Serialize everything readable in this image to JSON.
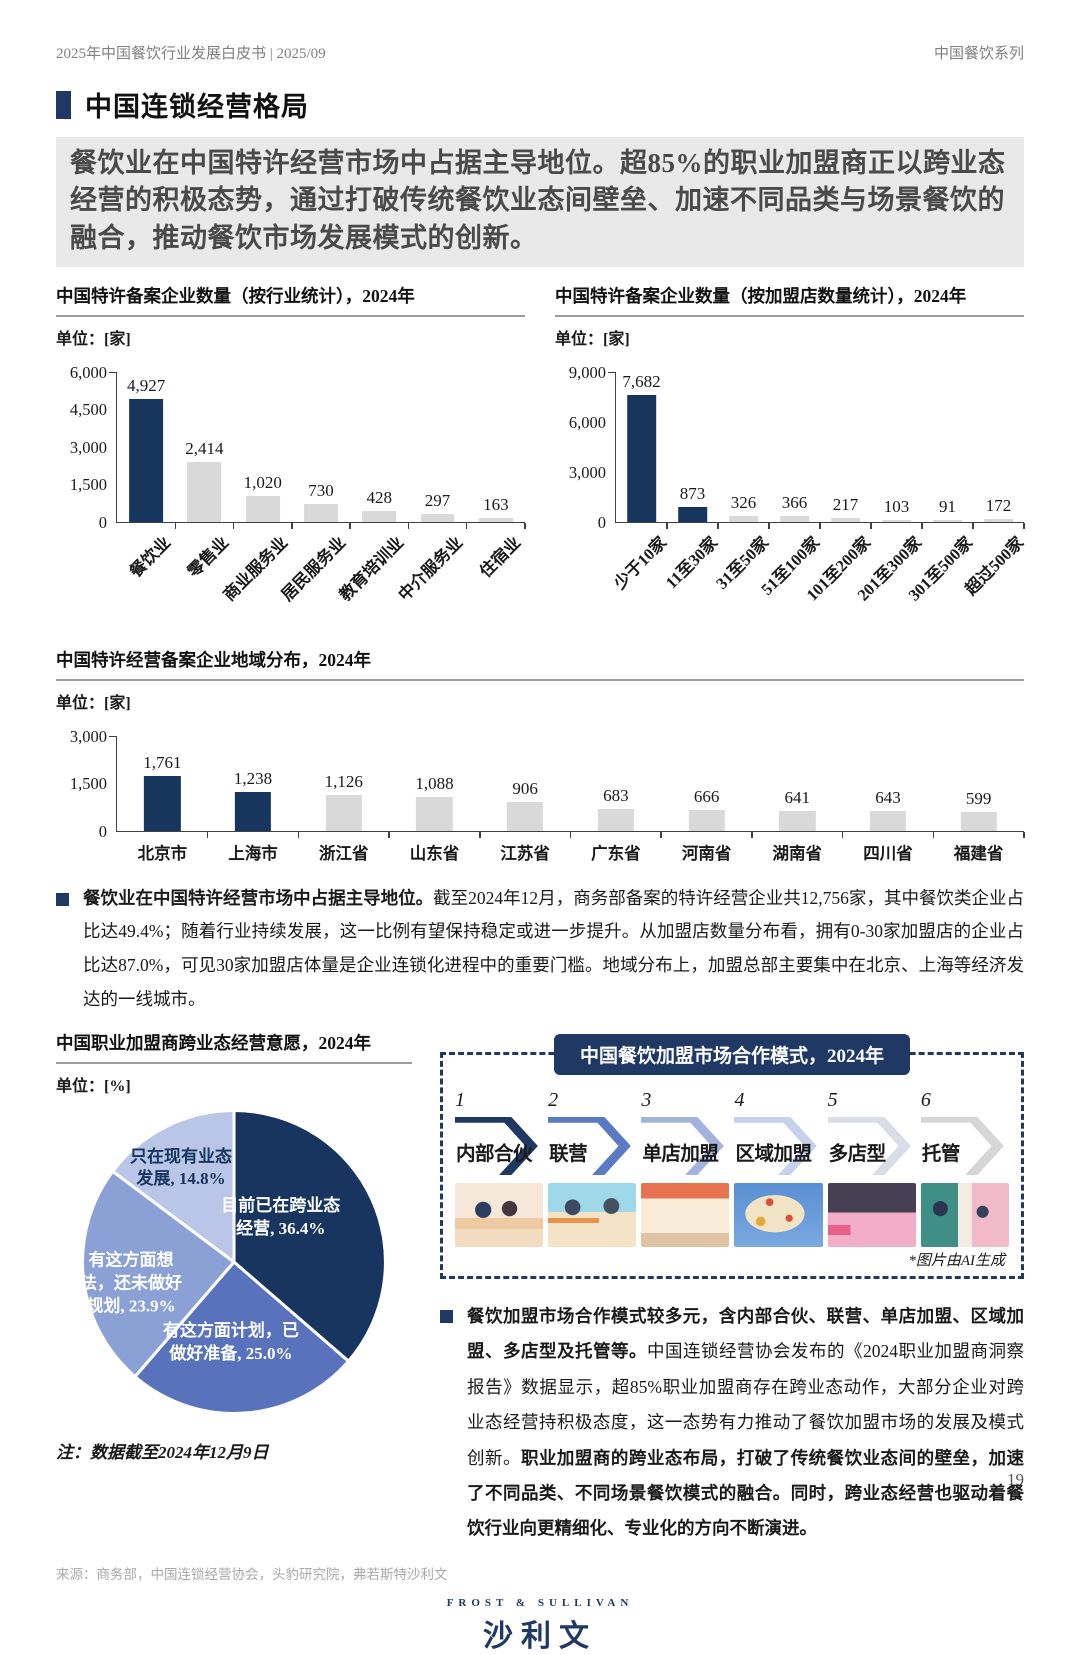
{
  "colors": {
    "accent_navy": "#17365d",
    "bar_gray": "#d9d9d9",
    "deep_navy": "#1f3864"
  },
  "header": {
    "doc_title": "2025年中国餐饮行业发展白皮书 | 2025/09",
    "series": "中国餐饮系列"
  },
  "section": {
    "title": "中国连锁经营格局",
    "highlight": "餐饮业在中国特许经营市场中占据主导地位。超85%的职业加盟商正以跨业态经营的积极态势，通过打破传统餐饮业态间壁垒、加速不同品类与场景餐饮的融合，推动餐饮市场发展模式的创新。"
  },
  "chart_data": [
    {
      "type": "bar",
      "title": "中国特许备案企业数量（按行业统计），2024年",
      "unit": "单位：[家]",
      "categories": [
        "餐饮业",
        "零售业",
        "商业服务业",
        "居民服务业",
        "教育培训业",
        "中介服务业",
        "住宿业"
      ],
      "values": [
        4927,
        2414,
        1020,
        730,
        428,
        297,
        163
      ],
      "labels": [
        "4,927",
        "2,414",
        "1,020",
        "730",
        "428",
        "297",
        "163"
      ],
      "ymax": 6000,
      "yticks": [
        "0",
        "1,500",
        "3,000",
        "4,500",
        "6,000"
      ],
      "emphasized": [
        0
      ]
    },
    {
      "type": "bar",
      "title": "中国特许备案企业数量（按加盟店数量统计），2024年",
      "unit": "单位：[家]",
      "categories": [
        "少于10家",
        "11至30家",
        "31至50家",
        "51至100家",
        "101至200家",
        "201至300家",
        "301至500家",
        "超过500家"
      ],
      "values": [
        7682,
        873,
        326,
        366,
        217,
        103,
        91,
        172
      ],
      "labels": [
        "7,682",
        "873",
        "326",
        "366",
        "217",
        "103",
        "91",
        "172"
      ],
      "ymax": 9000,
      "yticks": [
        "0",
        "3,000",
        "6,000",
        "9,000"
      ],
      "emphasized": [
        0,
        1
      ]
    },
    {
      "type": "bar",
      "title": "中国特许经营备案企业地域分布，2024年",
      "unit": "单位：[家]",
      "categories": [
        "北京市",
        "上海市",
        "浙江省",
        "山东省",
        "江苏省",
        "广东省",
        "河南省",
        "湖南省",
        "四川省",
        "福建省"
      ],
      "values": [
        1761,
        1238,
        1126,
        1088,
        906,
        683,
        666,
        641,
        643,
        599
      ],
      "labels": [
        "1,761",
        "1,238",
        "1,126",
        "1,088",
        "906",
        "683",
        "666",
        "641",
        "643",
        "599"
      ],
      "ymax": 3000,
      "yticks": [
        "0",
        "1,500",
        "3,000"
      ],
      "emphasized": [
        0,
        1
      ]
    },
    {
      "type": "pie",
      "title": "中国职业加盟商跨业态经营意愿，2024年",
      "unit": "单位：[%]",
      "slices": [
        {
          "label": "目前已在跨业态经营, 36.4%",
          "value": 36.4,
          "color": "#17355e",
          "text_color": "#ffffff"
        },
        {
          "label": "有这方面计划，已做好准备, 25.0%",
          "value": 25.0,
          "color": "#5872bb",
          "text_color": "#ffffff"
        },
        {
          "label": "有这方面想法，还未做好规划, 23.9%",
          "value": 23.9,
          "color": "#8ba1d5",
          "text_color": "#ffffff"
        },
        {
          "label": "只在现有业态发展, 14.8%",
          "value": 14.8,
          "color": "#b9c6e8",
          "text_color": "#17355e"
        }
      ],
      "note": "注：数据截至2024年12月9日"
    }
  ],
  "left_para": {
    "lead": "餐饮业在中国特许经营市场中占据主导地位。",
    "body": "截至2024年12月，商务部备案的特许经营企业共12,756家，其中餐饮类企业占比达49.4%；随着行业持续发展，这一比例有望保持稳定或进一步提升。从加盟店数量分布看，拥有0-30家加盟店的企业占比达87.0%，可见30家加盟店体量是企业连锁化进程中的重要门槛。地域分布上，加盟总部主要集中在北京、上海等经济发达的一线城市。"
  },
  "coop_box": {
    "title": "中国餐饮加盟市场合作模式，2024年",
    "steps": [
      {
        "num": "1",
        "label": "内部合伙",
        "color": "#1f3864"
      },
      {
        "num": "2",
        "label": "联营",
        "color": "#5b7ac4"
      },
      {
        "num": "3",
        "label": "单店加盟",
        "color": "#a4b3de"
      },
      {
        "num": "4",
        "label": "区域加盟",
        "color": "#c6d2ec"
      },
      {
        "num": "5",
        "label": "多店型",
        "color": "#d8dde6"
      },
      {
        "num": "6",
        "label": "托管",
        "color": "#d6d6d6"
      }
    ],
    "ai_note": "*图片由AI生成"
  },
  "right_para": {
    "lead": "餐饮加盟市场合作模式较多元，含内部合伙、联营、单店加盟、区域加盟、多店型及托管等。",
    "body": "中国连锁经营协会发布的《2024职业加盟商洞察报告》数据显示，超85%职业加盟商存在跨业态动作，大部分企业对跨业态经营持积极态度，这一态势有力推动了餐饮加盟市场的发展及模式创新。",
    "tail": "职业加盟商的跨业态布局，打破了传统餐饮业态间的壁垒，加速了不同品类、不同场景餐饮模式的融合。同时，跨业态经营也驱动着餐饮行业向更精细化、专业化的方向不断演进。"
  },
  "footer": {
    "source": "来源：商务部，中国连锁经营协会，头豹研究院，弗若斯特沙利文",
    "logo_top": "FROST & SULLIVAN",
    "logo_main": "沙利文",
    "page": "19"
  }
}
